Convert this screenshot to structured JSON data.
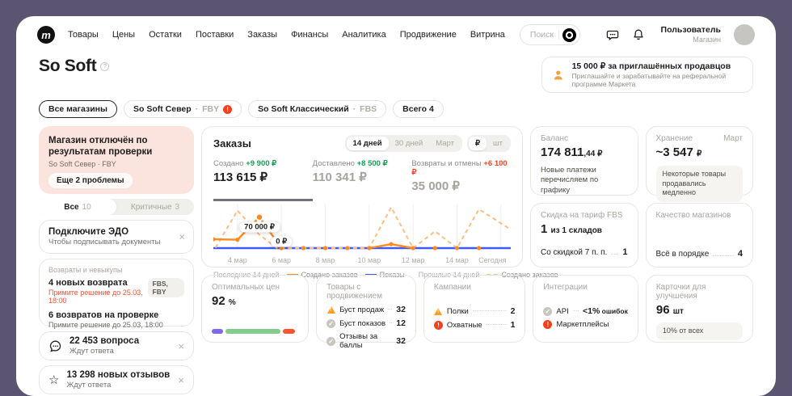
{
  "colors": {
    "frame": "#5b5571",
    "accent_red": "#fb3f1d",
    "deadline_orange": "#ff4f30",
    "green": "#169e52",
    "chart_orange": "#ff8a1e",
    "chart_orange_dash": "#ffbd80",
    "chart_blue": "#3c5bf6",
    "pink_card": "#fbe4de",
    "warning_triangle": "#ff9d21"
  },
  "header": {
    "nav": [
      "Товары",
      "Цены",
      "Остатки",
      "Поставки",
      "Заказы",
      "Финансы",
      "Аналитика",
      "Продвижение",
      "Витрина"
    ],
    "search_placeholder": "Поиск",
    "user": {
      "name": "Пользователь",
      "role": "Магазин"
    }
  },
  "title": {
    "shop_name": "So Soft",
    "help": "?"
  },
  "referral": {
    "title": "15 000 ₽ за приглашённых продавцов",
    "subtitle": "Приглашайте и зарабатывайте на реферальной программе Маркета"
  },
  "shop_tabs": {
    "all": "Все магазины",
    "north_name": "So Soft Север",
    "sep": "·",
    "north_tag": "FBY",
    "north_alert": "!",
    "classic_name": "So Soft Классический",
    "classic_tag": "FBS",
    "total": "Всего 4"
  },
  "alerts": {
    "critical_card": {
      "title": "Магазин отключён по результатам проверки",
      "shop": "So Soft Север · FBY",
      "more_button": "Еще 2 проблемы"
    },
    "tabs": {
      "all_label": "Все",
      "all_count": "10",
      "critical_label": "Критичные",
      "critical_count": "3"
    },
    "edo": {
      "title": "Подключите ЭДО",
      "subtitle": "Чтобы подписывать документы",
      "close": "×"
    },
    "returns": {
      "label": "Возвраты и невыкупы",
      "item1_title": "4 новых возврата",
      "item1_badge": "FBS, FBY",
      "item1_deadline": "Примите решение до 25.03, 18:00",
      "item2_title": "6 возвратов на проверке",
      "item2_deadline": "Примите решение до 25.03, 18:00"
    },
    "questions": {
      "title": "22 453 вопроса",
      "subtitle": "Ждут ответа",
      "close": "×"
    },
    "reviews": {
      "title": "13 298 новых отзывов",
      "subtitle": "Ждут ответа",
      "close": "×"
    }
  },
  "orders": {
    "title": "Заказы",
    "period_tabs": [
      "14 дней",
      "30 дней",
      "Март"
    ],
    "unit_tabs": [
      "₽",
      "шт"
    ],
    "metrics": [
      {
        "label": "Создано",
        "delta": "+9 900 ₽",
        "value": "113 615 ₽"
      },
      {
        "label": "Доставлено",
        "delta": "+8 500 ₽",
        "value": "110 341 ₽"
      },
      {
        "label": "Возвраты и отмены",
        "delta": "+6 100 ₽",
        "value": "35 000 ₽"
      }
    ],
    "legend": {
      "group1": "Последние 14 дней",
      "item1": "Создано заказов",
      "item2": "Показы",
      "group2": "Прошлые 14 дней",
      "item3": "Создано заказов"
    },
    "chart": {
      "type": "line",
      "x_ticks": [
        "4 мар",
        "6 мар",
        "8 мар",
        "10 мар",
        "12 мар",
        "14 мар",
        "Сегодня"
      ],
      "tick_days": [
        4,
        6,
        8,
        10,
        12,
        14,
        16
      ],
      "x_range": [
        2.9,
        16.45
      ],
      "y_max": 95000,
      "annotations": [
        {
          "day": 5,
          "value": 70000,
          "label": "70 000 ₽",
          "label_value": 48000
        },
        {
          "day": 6,
          "value": 0,
          "label": "0 ₽",
          "label_value": 15000
        }
      ],
      "series": [
        {
          "name": "Показы",
          "style": "solid",
          "color": "#3c5bf6",
          "width": 2.4,
          "segments": [
            [
              [
                2.9,
                0
              ],
              [
                16.45,
                0
              ]
            ]
          ],
          "dots": []
        },
        {
          "name": "Создано заказов (прошлые 14 дней)",
          "style": "dashed",
          "color": "#ffbd80",
          "width": 2,
          "segments": [
            [
              [
                3,
                1000
              ],
              [
                4,
                85000
              ],
              [
                5,
                30000
              ],
              [
                5.8,
                0
              ],
              [
                10,
                0
              ],
              [
                11,
                92000
              ],
              [
                12,
                0
              ],
              [
                13,
                38000
              ],
              [
                14,
                0
              ],
              [
                15,
                88000
              ],
              [
                16.45,
                42000
              ]
            ]
          ],
          "dots": []
        },
        {
          "name": "Создано заказов (последние 14 дней)",
          "style": "solid",
          "color": "#ff8a1e",
          "width": 2.4,
          "segments": [
            [
              [
                2.9,
                20000
              ],
              [
                4,
                19000
              ],
              [
                5,
                70000
              ],
              [
                6,
                0
              ]
            ],
            [
              [
                10,
                0
              ],
              [
                11,
                9000
              ],
              [
                12,
                0
              ]
            ]
          ],
          "dots": [
            [
              2.9,
              20000
            ],
            [
              4,
              19000
            ],
            [
              6,
              0
            ],
            [
              7,
              0
            ],
            [
              8,
              0
            ],
            [
              9,
              0
            ],
            [
              10,
              0
            ],
            [
              11,
              9000
            ],
            [
              12,
              0
            ],
            [
              13,
              0
            ],
            [
              14,
              0
            ],
            [
              15,
              0
            ]
          ]
        }
      ]
    }
  },
  "balance": {
    "title": "Баланс",
    "value_main": "174 811",
    "value_frac": ",44 ₽",
    "note": "Новые платежи перечисляем по графику"
  },
  "storage": {
    "title": "Хранение",
    "period": "Март",
    "value_main": "~3 547",
    "value_frac": "₽",
    "note": "Некоторые товары продавались медленно"
  },
  "fbs_discount": {
    "title": "Скидка на тариф FBS",
    "value_main": "1",
    "value_suffix": "из 1 складов",
    "row_label": "Со скидкой 7 п. п.",
    "row_value": "1"
  },
  "quality": {
    "title": "Качество магазинов",
    "row_label": "Всё в порядке",
    "row_value": "4"
  },
  "optimal_prices": {
    "title": "Оптимальных цен",
    "value": "92",
    "unit": "%",
    "bar": [
      {
        "color": "#7b6bea",
        "width": 13
      },
      {
        "color": "#84cc8e",
        "width": 64
      },
      {
        "color": "#fc5230",
        "width": 14
      }
    ]
  },
  "promo_products": {
    "title": "Товары с продвижением",
    "rows": [
      {
        "icon": "warning",
        "label": "Буст продаж",
        "value": "32"
      },
      {
        "icon": "check",
        "label": "Буст показов",
        "value": "12"
      },
      {
        "icon": "check",
        "label": "Отзывы за баллы",
        "value": "32"
      }
    ]
  },
  "campaigns": {
    "title": "Кампании",
    "rows": [
      {
        "icon": "warning",
        "label": "Полки",
        "value": "2"
      },
      {
        "icon": "error",
        "label": "Охватные",
        "value": "1"
      }
    ]
  },
  "integrations": {
    "title": "Интеграции",
    "rows": [
      {
        "icon": "check",
        "label": "API",
        "value": "<1%",
        "value_suffix": " ошибок"
      },
      {
        "icon": "error",
        "label": "Маркетплейсы",
        "value": ""
      }
    ]
  },
  "cards_improve": {
    "title": "Карточки для улучшения",
    "value": "96",
    "unit": "шт",
    "chip": "10% от всех"
  }
}
